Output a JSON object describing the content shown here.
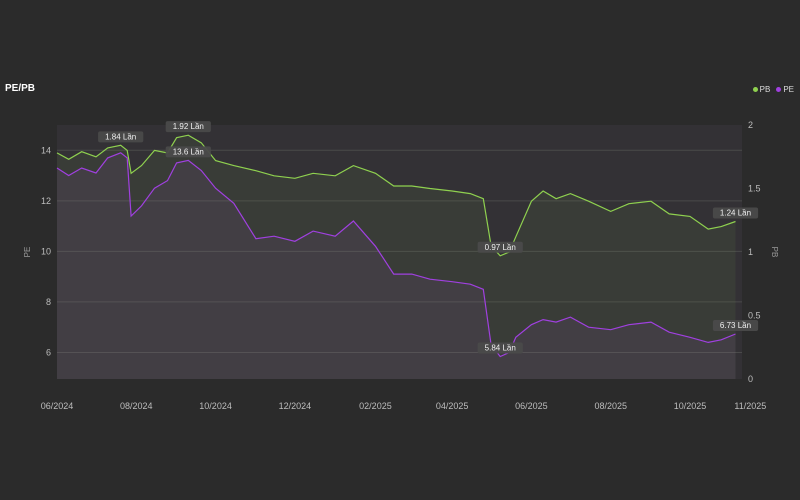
{
  "chart_data": {
    "type": "line",
    "title": "PE/PB",
    "ylabel_left": "PE",
    "ylabel_right": "PB",
    "left_ticks": [
      "14",
      "12",
      "10",
      "8",
      "6"
    ],
    "right_ticks": [
      "2",
      "1.5",
      "1",
      "0.5",
      "0"
    ],
    "ylim_left": [
      4.95,
      15
    ],
    "ylim_right": [
      0,
      2
    ],
    "x_ticks": [
      "06/2024",
      "08/2024",
      "10/2024",
      "12/2024",
      "02/2025",
      "04/2025",
      "06/2025",
      "08/2025",
      "10/2025",
      "11/2025"
    ],
    "grid": true,
    "legend_position": "top-right",
    "series": [
      {
        "name": "PB",
        "axis": "right",
        "color": "#8fd14f",
        "points": [
          [
            "2024-06-01",
            1.78
          ],
          [
            "2024-06-10",
            1.73
          ],
          [
            "2024-06-20",
            1.79
          ],
          [
            "2024-07-01",
            1.75
          ],
          [
            "2024-07-10",
            1.82
          ],
          [
            "2024-07-20",
            1.84
          ],
          [
            "2024-07-25",
            1.8
          ],
          [
            "2024-07-28",
            1.62
          ],
          [
            "2024-08-05",
            1.68
          ],
          [
            "2024-08-15",
            1.8
          ],
          [
            "2024-08-25",
            1.78
          ],
          [
            "2024-09-01",
            1.9
          ],
          [
            "2024-09-10",
            1.92
          ],
          [
            "2024-09-20",
            1.86
          ],
          [
            "2024-10-01",
            1.72
          ],
          [
            "2024-10-15",
            1.68
          ],
          [
            "2024-11-01",
            1.64
          ],
          [
            "2024-11-15",
            1.6
          ],
          [
            "2024-12-01",
            1.58
          ],
          [
            "2024-12-15",
            1.62
          ],
          [
            "2025-01-01",
            1.6
          ],
          [
            "2025-01-15",
            1.68
          ],
          [
            "2025-02-01",
            1.62
          ],
          [
            "2025-02-15",
            1.52
          ],
          [
            "2025-03-01",
            1.52
          ],
          [
            "2025-03-15",
            1.5
          ],
          [
            "2025-04-01",
            1.48
          ],
          [
            "2025-04-15",
            1.46
          ],
          [
            "2025-04-25",
            1.42
          ],
          [
            "2025-05-01",
            1.05
          ],
          [
            "2025-05-08",
            0.97
          ],
          [
            "2025-05-15",
            1.0
          ],
          [
            "2025-05-20",
            1.12
          ],
          [
            "2025-06-01",
            1.4
          ],
          [
            "2025-06-10",
            1.48
          ],
          [
            "2025-06-20",
            1.42
          ],
          [
            "2025-07-01",
            1.46
          ],
          [
            "2025-07-15",
            1.4
          ],
          [
            "2025-08-01",
            1.32
          ],
          [
            "2025-08-15",
            1.38
          ],
          [
            "2025-09-01",
            1.4
          ],
          [
            "2025-09-15",
            1.3
          ],
          [
            "2025-10-01",
            1.28
          ],
          [
            "2025-10-15",
            1.18
          ],
          [
            "2025-10-25",
            1.2
          ],
          [
            "2025-11-05",
            1.24
          ]
        ]
      },
      {
        "name": "PE",
        "axis": "left",
        "color": "#a040e0",
        "points": [
          [
            "2024-06-01",
            13.3
          ],
          [
            "2024-06-10",
            13.0
          ],
          [
            "2024-06-20",
            13.3
          ],
          [
            "2024-07-01",
            13.1
          ],
          [
            "2024-07-10",
            13.7
          ],
          [
            "2024-07-20",
            13.9
          ],
          [
            "2024-07-25",
            13.7
          ],
          [
            "2024-07-28",
            11.4
          ],
          [
            "2024-08-05",
            11.8
          ],
          [
            "2024-08-15",
            12.5
          ],
          [
            "2024-08-25",
            12.8
          ],
          [
            "2024-09-01",
            13.5
          ],
          [
            "2024-09-10",
            13.6
          ],
          [
            "2024-09-20",
            13.2
          ],
          [
            "2024-10-01",
            12.5
          ],
          [
            "2024-10-15",
            11.9
          ],
          [
            "2024-11-01",
            10.5
          ],
          [
            "2024-11-15",
            10.6
          ],
          [
            "2024-12-01",
            10.4
          ],
          [
            "2024-12-15",
            10.8
          ],
          [
            "2025-01-01",
            10.6
          ],
          [
            "2025-01-15",
            11.2
          ],
          [
            "2025-02-01",
            10.2
          ],
          [
            "2025-02-15",
            9.1
          ],
          [
            "2025-03-01",
            9.1
          ],
          [
            "2025-03-15",
            8.9
          ],
          [
            "2025-04-01",
            8.8
          ],
          [
            "2025-04-15",
            8.7
          ],
          [
            "2025-04-25",
            8.5
          ],
          [
            "2025-05-01",
            6.3
          ],
          [
            "2025-05-08",
            5.84
          ],
          [
            "2025-05-15",
            6.0
          ],
          [
            "2025-05-20",
            6.6
          ],
          [
            "2025-06-01",
            7.1
          ],
          [
            "2025-06-10",
            7.3
          ],
          [
            "2025-06-20",
            7.2
          ],
          [
            "2025-07-01",
            7.4
          ],
          [
            "2025-07-15",
            7.0
          ],
          [
            "2025-08-01",
            6.9
          ],
          [
            "2025-08-15",
            7.1
          ],
          [
            "2025-09-01",
            7.2
          ],
          [
            "2025-09-15",
            6.8
          ],
          [
            "2025-10-01",
            6.6
          ],
          [
            "2025-10-15",
            6.4
          ],
          [
            "2025-10-25",
            6.5
          ],
          [
            "2025-11-05",
            6.73
          ]
        ]
      }
    ],
    "annotations": [
      {
        "series": "PB",
        "date": "2024-07-20",
        "value": 1.84,
        "label": "1.84 Lần"
      },
      {
        "series": "PB",
        "date": "2024-09-10",
        "value": 1.92,
        "label": "1.92 Lần"
      },
      {
        "series": "PE",
        "date": "2024-09-10",
        "value": 13.6,
        "label": "13.6 Lần"
      },
      {
        "series": "PB",
        "date": "2025-05-08",
        "value": 0.97,
        "label": "0.97 Lần"
      },
      {
        "series": "PE",
        "date": "2025-05-08",
        "value": 5.84,
        "label": "5.84 Lần"
      },
      {
        "series": "PB",
        "date": "2025-11-05",
        "value": 1.24,
        "label": "1.24 Lần"
      },
      {
        "series": "PE",
        "date": "2025-11-05",
        "value": 6.73,
        "label": "6.73 Lần"
      }
    ]
  }
}
